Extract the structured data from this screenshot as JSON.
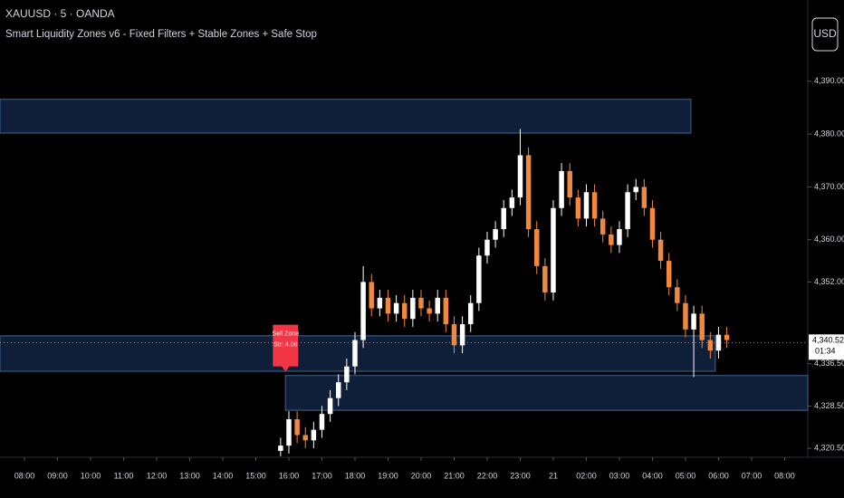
{
  "chart_data": {
    "type": "candlestick",
    "symbol": "XAUUSD · 5 · OANDA",
    "title": "Smart Liquidity Zones v6 - Fixed Filters + Stable Zones + Safe Stop",
    "currency": "USD",
    "up_color": "#ffffff",
    "down_color": "#f0883e",
    "zone_color": "#0f1f3a",
    "x": [
      7.75,
      8,
      8.25,
      8.5,
      8.75,
      9,
      9.25,
      9.5,
      9.75,
      10,
      10.25,
      10.5,
      10.75,
      11,
      11.25,
      11.5,
      11.75,
      12,
      12.25,
      12.5,
      12.75,
      13,
      13.25,
      13.5,
      13.75,
      14,
      14.25,
      14.5,
      14.75,
      15,
      15.25,
      15.5,
      15.75,
      16,
      16.25,
      16.5,
      16.75,
      17,
      17.25,
      17.5,
      17.75,
      18,
      18.25,
      18.5,
      18.75,
      19,
      19.25,
      19.5,
      19.75,
      20,
      20.25,
      20.5,
      20.75,
      21,
      21.25
    ],
    "open": [
      4320,
      4321,
      4326,
      4323,
      4322,
      4324,
      4327,
      4330,
      4333,
      4336,
      4341,
      4352,
      4347,
      4349,
      4346,
      4348,
      4345,
      4349,
      4347,
      4346,
      4349,
      4344,
      4340,
      4344,
      4348,
      4357,
      4360,
      4362,
      4366,
      4368,
      4376,
      4362,
      4355,
      4350,
      4366,
      4373,
      4368,
      4364,
      4369,
      4364,
      4361,
      4359,
      4362,
      4369,
      4370,
      4366,
      4360,
      4356,
      4351,
      4348,
      4343,
      4346,
      4341,
      4339,
      4342
    ],
    "high": [
      4322.5,
      4327.5,
      4327.5,
      4324.5,
      4325.5,
      4328.5,
      4331.5,
      4334.5,
      4337.5,
      4342.5,
      4355,
      4353.5,
      4350.5,
      4350.5,
      4349.5,
      4349.5,
      4350.5,
      4350.5,
      4348.5,
      4350.5,
      4350.5,
      4345.5,
      4345.5,
      4349.5,
      4358.5,
      4361.5,
      4363.5,
      4367.5,
      4369.5,
      4381,
      4377.5,
      4363.5,
      4356.5,
      4367.5,
      4374.5,
      4374.5,
      4369.5,
      4370.5,
      4370.5,
      4365.5,
      4362.5,
      4363.5,
      4370.5,
      4371.5,
      4371.5,
      4367.5,
      4361.5,
      4357.5,
      4352.5,
      4349.5,
      4347.5,
      4347.5,
      4342.5,
      4343.5,
      4343.5
    ],
    "low": [
      4319,
      4319.5,
      4321.5,
      4320.5,
      4320.5,
      4322.5,
      4325.5,
      4328.5,
      4331.5,
      4334.5,
      4339.5,
      4345.5,
      4345.5,
      4344.5,
      4344.5,
      4343.5,
      4343.5,
      4345.5,
      4344.5,
      4344.5,
      4342.5,
      4338.5,
      4338.5,
      4342.5,
      4346.5,
      4355.5,
      4358.5,
      4360.5,
      4364.5,
      4366.5,
      4360.5,
      4353.5,
      4348.5,
      4348.5,
      4364.5,
      4366.5,
      4362.5,
      4362.5,
      4362.5,
      4359.5,
      4357.5,
      4357.5,
      4360.5,
      4367.5,
      4364.5,
      4358.5,
      4354.5,
      4349.5,
      4346.5,
      4341.5,
      4334,
      4339.5,
      4337.5,
      4337.5,
      4339.5
    ],
    "close": [
      4321,
      4326,
      4323,
      4322,
      4324,
      4327,
      4330,
      4333,
      4336,
      4341,
      4352,
      4347,
      4349,
      4346,
      4348,
      4345,
      4349,
      4347,
      4346,
      4349,
      4344,
      4340,
      4344,
      4348,
      4357,
      4360,
      4362,
      4366,
      4368,
      4376,
      4362,
      4355,
      4350,
      4366,
      4373,
      4368,
      4364,
      4369,
      4364,
      4361,
      4359,
      4362,
      4369,
      4370,
      4366,
      4360,
      4356,
      4351,
      4348,
      4343,
      4346,
      4341,
      4339,
      4342,
      4341
    ],
    "zones": [
      {
        "x0": -0.74,
        "x1": 20.16,
        "top": 4386.6,
        "bottom": 4380.2
      },
      {
        "x0": -0.74,
        "x1": 20.9,
        "top": 4341.8,
        "bottom": 4335.1
      },
      {
        "x0": 7.9,
        "x1": 23.7,
        "top": 4334.3,
        "bottom": 4327.7
      }
    ],
    "zone_label": {
      "x": 7.9,
      "lines": [
        "Sell Zone",
        "Str: 4.08"
      ]
    },
    "last_price": {
      "value": 4340.52,
      "label": "4,340.520",
      "countdown": "01:34"
    },
    "xlim": [
      -0.74,
      23.7
    ],
    "xticks": [
      {
        "value": 0,
        "label": "08:00"
      },
      {
        "value": 1,
        "label": "09:00"
      },
      {
        "value": 2,
        "label": "10:00"
      },
      {
        "value": 3,
        "label": "11:00"
      },
      {
        "value": 4,
        "label": "12:00"
      },
      {
        "value": 5,
        "label": "13:00"
      },
      {
        "value": 6,
        "label": "14:00"
      },
      {
        "value": 7,
        "label": "15:00"
      },
      {
        "value": 8,
        "label": "16:00"
      },
      {
        "value": 9,
        "label": "17:00"
      },
      {
        "value": 10,
        "label": "18:00"
      },
      {
        "value": 11,
        "label": "19:00"
      },
      {
        "value": 12,
        "label": "20:00"
      },
      {
        "value": 13,
        "label": "21:00"
      },
      {
        "value": 14,
        "label": "22:00"
      },
      {
        "value": 15,
        "label": "23:00"
      },
      {
        "value": 16,
        "label": "21"
      },
      {
        "value": 17,
        "label": "02:00"
      },
      {
        "value": 18,
        "label": "03:00"
      },
      {
        "value": 19,
        "label": "04:00"
      },
      {
        "value": 20,
        "label": "05:00"
      },
      {
        "value": 21,
        "label": "06:00"
      },
      {
        "value": 22,
        "label": "07:00"
      },
      {
        "value": 23,
        "label": "08:00"
      }
    ],
    "ylim": [
      4318.8,
      4405.4
    ],
    "yticks": [
      {
        "value": 4390,
        "label": "4,390.000"
      },
      {
        "value": 4380,
        "label": "4,380.000"
      },
      {
        "value": 4370,
        "label": "4,370.000"
      },
      {
        "value": 4360,
        "label": "4,360.000"
      },
      {
        "value": 4352,
        "label": "4,352.000"
      },
      {
        "value": 4336.5,
        "label": "4,336.500"
      },
      {
        "value": 4328.5,
        "label": "4,328.500"
      },
      {
        "value": 4320.5,
        "label": "4,320.500"
      }
    ]
  }
}
